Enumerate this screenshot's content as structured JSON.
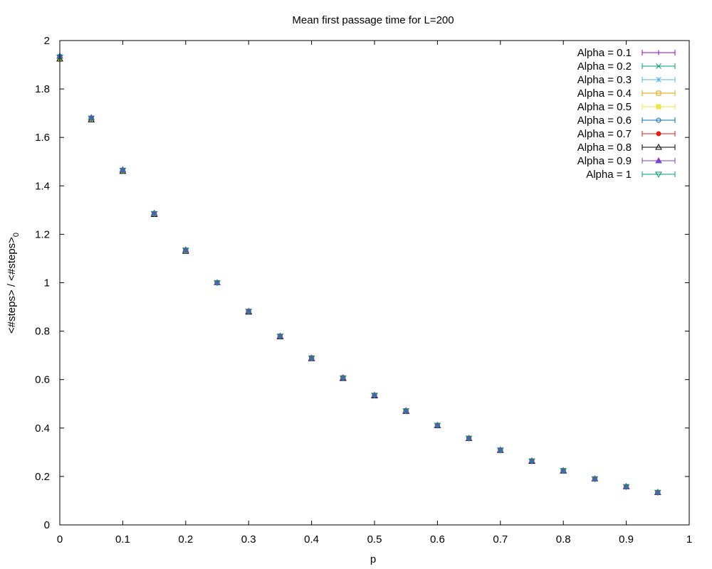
{
  "chart_data": {
    "type": "scatter",
    "title": "Mean first passage time for L=200",
    "xlabel": "p",
    "ylabel_main": "<#steps> / <#steps>",
    "ylabel_sub": "0",
    "xlim": [
      0,
      1
    ],
    "ylim": [
      0,
      2
    ],
    "xticks": [
      0,
      0.1,
      0.2,
      0.3,
      0.4,
      0.5,
      0.6,
      0.7,
      0.8,
      0.9,
      1
    ],
    "yticks": [
      0,
      0.2,
      0.4,
      0.6,
      0.8,
      1,
      1.2,
      1.4,
      1.6,
      1.8,
      2
    ],
    "legend_position": "top-right",
    "grid": false,
    "x": [
      0,
      0.05,
      0.1,
      0.15,
      0.2,
      0.25,
      0.3,
      0.35,
      0.4,
      0.45,
      0.5,
      0.55,
      0.6,
      0.65,
      0.7,
      0.75,
      0.8,
      0.85,
      0.9,
      0.95
    ],
    "series": [
      {
        "name": "Alpha = 0.1",
        "color": "#9400d3",
        "marker": "plus",
        "values": [
          1.93,
          1.68,
          1.465,
          1.285,
          1.135,
          1.0,
          0.882,
          0.779,
          0.689,
          0.607,
          0.535,
          0.471,
          0.411,
          0.358,
          0.309,
          0.264,
          0.224,
          0.19,
          0.158,
          0.134
        ]
      },
      {
        "name": "Alpha = 0.2",
        "color": "#009e73",
        "marker": "cross",
        "values": [
          1.93,
          1.678,
          1.463,
          1.284,
          1.134,
          1.0,
          0.881,
          0.779,
          0.688,
          0.607,
          0.535,
          0.471,
          0.411,
          0.358,
          0.309,
          0.264,
          0.224,
          0.19,
          0.158,
          0.134
        ]
      },
      {
        "name": "Alpha = 0.3",
        "color": "#56b4e9",
        "marker": "star",
        "values": [
          1.935,
          1.68,
          1.465,
          1.286,
          1.135,
          1.0,
          0.882,
          0.779,
          0.689,
          0.607,
          0.535,
          0.471,
          0.411,
          0.358,
          0.309,
          0.264,
          0.224,
          0.19,
          0.158,
          0.134
        ]
      },
      {
        "name": "Alpha = 0.4",
        "color": "#e69f00",
        "marker": "square-open",
        "values": [
          1.928,
          1.677,
          1.462,
          1.283,
          1.132,
          1.0,
          0.881,
          0.778,
          0.688,
          0.606,
          0.534,
          0.47,
          0.41,
          0.357,
          0.308,
          0.264,
          0.224,
          0.19,
          0.158,
          0.134
        ]
      },
      {
        "name": "Alpha = 0.5",
        "color": "#f0e442",
        "marker": "square-filled",
        "values": [
          1.926,
          1.675,
          1.461,
          1.282,
          1.131,
          1.0,
          0.88,
          0.778,
          0.688,
          0.606,
          0.534,
          0.47,
          0.41,
          0.357,
          0.308,
          0.264,
          0.224,
          0.19,
          0.158,
          0.134
        ]
      },
      {
        "name": "Alpha = 0.6",
        "color": "#0072b2",
        "marker": "circle-open",
        "values": [
          1.932,
          1.679,
          1.464,
          1.285,
          1.134,
          1.0,
          0.882,
          0.779,
          0.688,
          0.607,
          0.535,
          0.471,
          0.411,
          0.358,
          0.309,
          0.264,
          0.224,
          0.19,
          0.158,
          0.134
        ]
      },
      {
        "name": "Alpha = 0.7",
        "color": "#e51e10",
        "marker": "circle-filled",
        "values": [
          1.934,
          1.681,
          1.466,
          1.287,
          1.136,
          1.0,
          0.883,
          0.78,
          0.691,
          0.609,
          0.536,
          0.472,
          0.412,
          0.358,
          0.309,
          0.264,
          0.225,
          0.19,
          0.158,
          0.134
        ]
      },
      {
        "name": "Alpha = 0.8",
        "color": "#000000",
        "marker": "triangle-open",
        "values": [
          1.924,
          1.673,
          1.46,
          1.282,
          1.13,
          1.0,
          0.879,
          0.777,
          0.687,
          0.605,
          0.533,
          0.469,
          0.41,
          0.357,
          0.308,
          0.263,
          0.223,
          0.19,
          0.158,
          0.134
        ]
      },
      {
        "name": "Alpha = 0.9",
        "color": "#7b3fd1",
        "marker": "triangle-filled",
        "values": [
          1.936,
          1.682,
          1.467,
          1.287,
          1.136,
          1.0,
          0.883,
          0.78,
          0.689,
          0.608,
          0.536,
          0.472,
          0.412,
          0.358,
          0.31,
          0.265,
          0.225,
          0.191,
          0.159,
          0.135
        ]
      },
      {
        "name": "Alpha = 1",
        "color": "#009e73",
        "marker": "triangle-down-open",
        "values": [
          1.931,
          1.679,
          1.464,
          1.285,
          1.134,
          1.0,
          0.882,
          0.779,
          0.689,
          0.607,
          0.535,
          0.471,
          0.411,
          0.358,
          0.309,
          0.264,
          0.224,
          0.19,
          0.158,
          0.134
        ]
      }
    ]
  }
}
